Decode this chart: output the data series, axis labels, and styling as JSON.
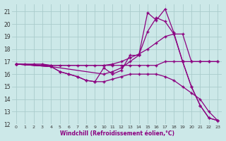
{
  "bg_color": "#cce8e8",
  "line_color": "#8b0080",
  "grid_color": "#aacccc",
  "xlabel": "Windchill (Refroidissement éolien,°C)",
  "xlim": [
    -0.5,
    23.5
  ],
  "ylim": [
    12,
    21.6
  ],
  "yticks": [
    12,
    13,
    14,
    15,
    16,
    17,
    18,
    19,
    20,
    21
  ],
  "xticks": [
    0,
    1,
    2,
    3,
    4,
    5,
    6,
    7,
    8,
    9,
    10,
    11,
    12,
    13,
    14,
    15,
    16,
    17,
    18,
    19,
    20,
    21,
    22,
    23
  ],
  "lines": [
    {
      "x": [
        0,
        1,
        2,
        3,
        4,
        5,
        6,
        7,
        8,
        9,
        10,
        11,
        12,
        13,
        14,
        15,
        16,
        17,
        18,
        19,
        20,
        21,
        22,
        23
      ],
      "y": [
        16.8,
        16.8,
        16.8,
        16.8,
        16.7,
        16.7,
        16.7,
        16.7,
        16.7,
        16.7,
        16.7,
        16.7,
        16.7,
        16.7,
        16.7,
        16.7,
        16.7,
        17.0,
        17.0,
        17.0,
        17.0,
        17.0,
        17.0,
        17.0
      ]
    },
    {
      "x": [
        0,
        4,
        10,
        11,
        12,
        13,
        14,
        15,
        16,
        17,
        18,
        19,
        20,
        21,
        22,
        23
      ],
      "y": [
        16.8,
        16.7,
        16.7,
        16.8,
        17.0,
        17.3,
        17.6,
        18.0,
        18.5,
        19.0,
        19.2,
        19.2,
        17.0,
        17.0,
        17.0,
        17.0
      ]
    },
    {
      "x": [
        0,
        4,
        10,
        11,
        12,
        13,
        14,
        15,
        16,
        17,
        18,
        19,
        20,
        21,
        22,
        23
      ],
      "y": [
        16.8,
        16.6,
        16.0,
        16.2,
        16.5,
        17.0,
        17.5,
        19.4,
        20.5,
        20.2,
        19.2,
        17.0,
        15.0,
        13.5,
        12.5,
        12.3
      ]
    },
    {
      "x": [
        0,
        4,
        5,
        6,
        7,
        8,
        9,
        10,
        11,
        12,
        13,
        14,
        15,
        16,
        17,
        18,
        19,
        20,
        21,
        22,
        23
      ],
      "y": [
        16.8,
        16.6,
        16.2,
        16.0,
        15.8,
        15.5,
        15.4,
        16.5,
        16.0,
        16.3,
        17.5,
        17.5,
        20.9,
        20.3,
        21.2,
        19.3,
        17.0,
        15.0,
        13.5,
        12.5,
        12.3
      ]
    },
    {
      "x": [
        0,
        4,
        5,
        6,
        7,
        8,
        9,
        10,
        11,
        12,
        13,
        14,
        15,
        16,
        17,
        18,
        19,
        20,
        21,
        22,
        23
      ],
      "y": [
        16.8,
        16.6,
        16.2,
        16.0,
        15.8,
        15.5,
        15.4,
        15.4,
        15.6,
        15.8,
        16.0,
        16.0,
        16.0,
        16.0,
        15.8,
        15.5,
        15.0,
        14.5,
        14.0,
        13.0,
        12.3
      ]
    }
  ]
}
